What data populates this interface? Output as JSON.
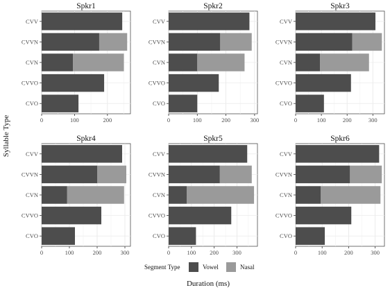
{
  "chart_data": {
    "type": "bar",
    "orientation": "horizontal",
    "stacked": true,
    "xlabel": "Duration (ms)",
    "ylabel": "Syllable Type",
    "categories": [
      "CVV",
      "CVVN",
      "CVN",
      "CVVO",
      "CVO"
    ],
    "legend": {
      "title": "Segment Type",
      "placement": "bottom",
      "entries": [
        {
          "name": "Vowel",
          "color": "#4d4d4d"
        },
        {
          "name": "Nasal",
          "color": "#9a9a9a"
        }
      ]
    },
    "grid": true,
    "facets": [
      {
        "title": "Spkr1",
        "xlim": [
          0,
          270
        ],
        "xticks": [
          0,
          100,
          200
        ],
        "vowel": [
          245,
          175,
          95,
          190,
          112
        ],
        "nasal": [
          0,
          85,
          155,
          0,
          0
        ]
      },
      {
        "title": "Spkr2",
        "xlim": [
          0,
          310
        ],
        "xticks": [
          0,
          100,
          200,
          300
        ],
        "vowel": [
          282,
          180,
          100,
          175,
          100
        ],
        "nasal": [
          0,
          110,
          165,
          0,
          0
        ]
      },
      {
        "title": "Spkr3",
        "xlim": [
          0,
          345
        ],
        "xticks": [
          0,
          100,
          200,
          300
        ],
        "vowel": [
          310,
          220,
          95,
          215,
          110
        ],
        "nasal": [
          0,
          115,
          190,
          0,
          0
        ]
      },
      {
        "title": "Spkr4",
        "xlim": [
          0,
          320
        ],
        "xticks": [
          0,
          100,
          200,
          300
        ],
        "vowel": [
          290,
          200,
          92,
          215,
          120
        ],
        "nasal": [
          0,
          105,
          205,
          0,
          0
        ]
      },
      {
        "title": "Spkr5",
        "xlim": [
          0,
          390
        ],
        "xticks": [
          0,
          100,
          200,
          300
        ],
        "vowel": [
          345,
          225,
          80,
          275,
          120
        ],
        "nasal": [
          0,
          140,
          295,
          0,
          0
        ]
      },
      {
        "title": "Spkr6",
        "xlim": [
          0,
          335
        ],
        "xticks": [
          0,
          100,
          200,
          300
        ],
        "vowel": [
          315,
          205,
          95,
          210,
          110
        ],
        "nasal": [
          0,
          120,
          225,
          0,
          0
        ]
      }
    ]
  }
}
